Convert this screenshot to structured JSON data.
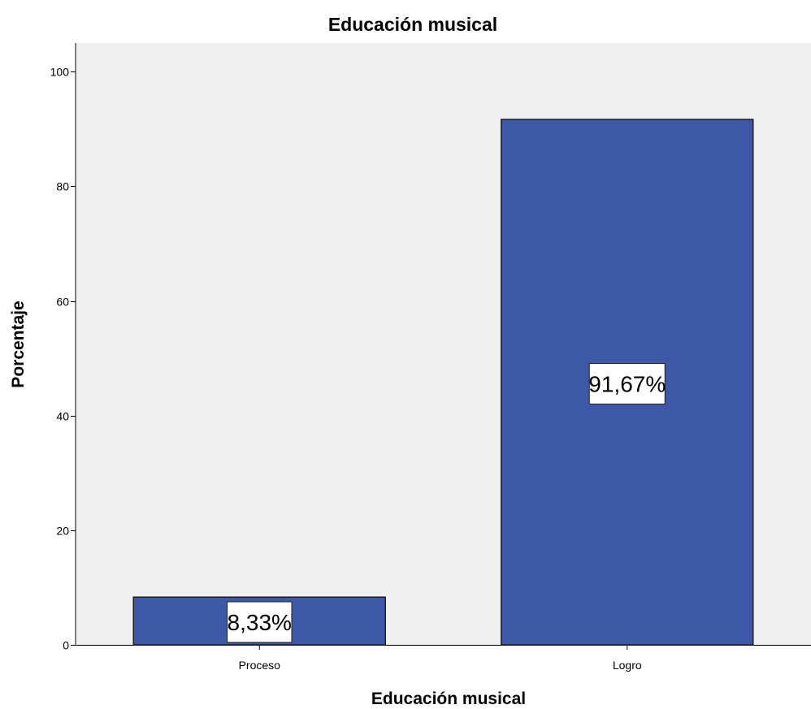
{
  "chart_data": {
    "type": "bar",
    "title": "Educación musical",
    "xlabel": "Educación musical",
    "ylabel": "Porcentaje",
    "categories": [
      "Proceso",
      "Logro"
    ],
    "values": [
      8.33,
      91.67
    ],
    "data_labels": [
      "8,33%",
      "91,67%"
    ],
    "ylim": [
      0,
      105
    ],
    "yticks": [
      0,
      20,
      40,
      60,
      80,
      100
    ],
    "ytick_labels": [
      "0",
      "20",
      "40",
      "60",
      "80",
      "100"
    ],
    "grid": false,
    "legend": "none",
    "colors": {
      "bar_fill": "#3E58A8",
      "bar_stroke": "#1E1E1E",
      "plot_background": "#F0F0F0",
      "page_background": "#FFFFFF"
    }
  }
}
